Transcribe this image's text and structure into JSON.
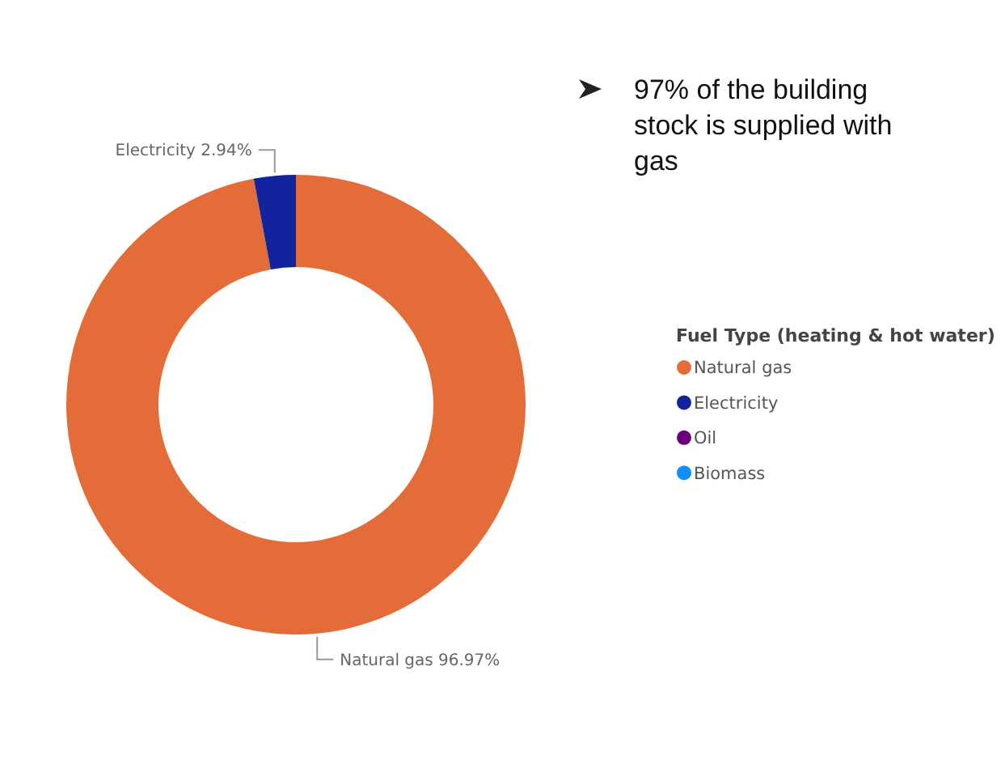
{
  "chart_data": {
    "type": "donut",
    "categories": [
      "Natural gas",
      "Electricity",
      "Oil",
      "Biomass"
    ],
    "values": [
      96.97,
      2.94,
      null,
      null
    ],
    "colors": [
      "#e46c38",
      "#12239e",
      "#6b007b",
      "#118dff"
    ],
    "value_labels": [
      "Natural gas 96.97%",
      "Electricity 2.94%",
      null,
      null
    ],
    "legend_title": "Fuel Type (heating & hot water)",
    "legend": "right",
    "annotations": [
      "97% of the building stock is supplied with gas"
    ]
  }
}
